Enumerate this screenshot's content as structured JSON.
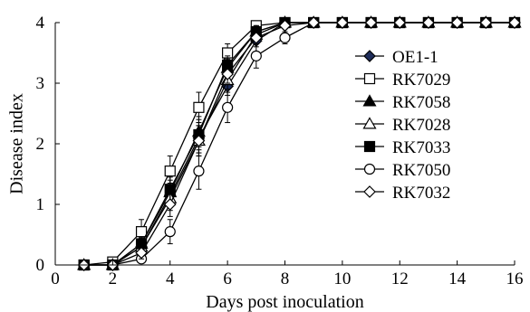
{
  "chart_data": {
    "type": "line",
    "title": "",
    "xlabel": "Days post inoculation",
    "ylabel": "Disease index",
    "xlim": [
      0,
      16
    ],
    "ylim": [
      0,
      4
    ],
    "xticks": [
      "0",
      "2",
      "4",
      "6",
      "8",
      "10",
      "12",
      "14",
      "16"
    ],
    "yticks": [
      "0",
      "1",
      "2",
      "3",
      "4"
    ],
    "grid": false,
    "legend_position": "right",
    "x": [
      1,
      2,
      3,
      4,
      5,
      6,
      7,
      8,
      9,
      10,
      11,
      12,
      13,
      14,
      15,
      16
    ],
    "series": [
      {
        "name": "OE1-1",
        "marker": "diamond-filled",
        "values": [
          0,
          0,
          0.3,
          1.15,
          2.1,
          2.95,
          3.7,
          4,
          4,
          4,
          4,
          4,
          4,
          4,
          4,
          4
        ],
        "err": [
          0,
          0,
          0.1,
          0.2,
          0.25,
          0.15,
          0.1,
          0,
          0,
          0,
          0,
          0,
          0,
          0,
          0,
          0
        ]
      },
      {
        "name": "RK7029",
        "marker": "square-open",
        "values": [
          0,
          0.05,
          0.55,
          1.55,
          2.6,
          3.5,
          3.95,
          4,
          4,
          4,
          4,
          4,
          4,
          4,
          4,
          4
        ],
        "err": [
          0,
          0.05,
          0.2,
          0.25,
          0.25,
          0.15,
          0.05,
          0,
          0,
          0,
          0,
          0,
          0,
          0,
          0,
          0
        ]
      },
      {
        "name": "RK7058",
        "marker": "triangle-filled",
        "values": [
          0,
          0,
          0.35,
          1.2,
          2.2,
          3.25,
          3.85,
          4,
          4,
          4,
          4,
          4,
          4,
          4,
          4,
          4
        ],
        "err": [
          0,
          0,
          0.1,
          0.2,
          0.25,
          0.15,
          0.1,
          0,
          0,
          0,
          0,
          0,
          0,
          0,
          0,
          0
        ]
      },
      {
        "name": "RK7028",
        "marker": "triangle-open",
        "values": [
          0,
          0,
          0.3,
          1.1,
          2.05,
          3.05,
          3.8,
          4,
          4,
          4,
          4,
          4,
          4,
          4,
          4,
          4
        ],
        "err": [
          0,
          0,
          0.1,
          0.2,
          0.25,
          0.15,
          0.1,
          0,
          0,
          0,
          0,
          0,
          0,
          0,
          0,
          0
        ]
      },
      {
        "name": "RK7033",
        "marker": "square-filled",
        "values": [
          0,
          0,
          0.35,
          1.25,
          2.15,
          3.3,
          3.85,
          4,
          4,
          4,
          4,
          4,
          4,
          4,
          4,
          4
        ],
        "err": [
          0,
          0,
          0.1,
          0.2,
          0.25,
          0.15,
          0.1,
          0,
          0,
          0,
          0,
          0,
          0,
          0,
          0,
          0
        ]
      },
      {
        "name": "RK7050",
        "marker": "circle-open",
        "values": [
          0,
          0,
          0.1,
          0.55,
          1.55,
          2.6,
          3.45,
          3.75,
          4,
          4,
          4,
          4,
          4,
          4,
          4,
          4
        ],
        "err": [
          0,
          0,
          0.05,
          0.2,
          0.3,
          0.25,
          0.2,
          0.1,
          0,
          0,
          0,
          0,
          0,
          0,
          0,
          0
        ]
      },
      {
        "name": "RK7032",
        "marker": "diamond-open",
        "values": [
          0,
          0,
          0.2,
          1.0,
          2.05,
          3.15,
          3.75,
          3.95,
          4,
          4,
          4,
          4,
          4,
          4,
          4,
          4
        ],
        "err": [
          0,
          0,
          0.1,
          0.2,
          0.25,
          0.15,
          0.1,
          0.05,
          0,
          0,
          0,
          0,
          0,
          0,
          0,
          0
        ]
      }
    ]
  }
}
